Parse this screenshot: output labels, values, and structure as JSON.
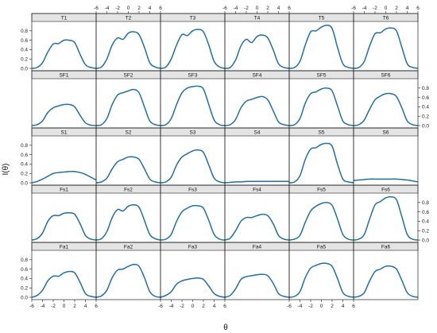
{
  "chart_data": {
    "type": "line",
    "layout": "lattice 6 columns x 5 rows, shared axes",
    "xlabel": "θ",
    "ylabel": "I(θ)",
    "xlim": [
      -6,
      6
    ],
    "ylim": [
      -0.05,
      1.0
    ],
    "x_ticks": [
      -6,
      -4,
      -2,
      0,
      2,
      4,
      6
    ],
    "y_ticks": [
      0.0,
      0.2,
      0.4,
      0.6,
      0.8
    ],
    "y_tick_labels": [
      "0.0",
      "0.2",
      "0.4",
      "0.6",
      "0.8"
    ],
    "grid": false,
    "legend": "none",
    "colors": {
      "line": "#1f6fa8",
      "strip": "#e4e4e4",
      "frame": "#222222",
      "text": "#111111"
    },
    "x": [
      -6,
      -5,
      -4,
      -3,
      -2,
      -1,
      0,
      1,
      2,
      3,
      4,
      5,
      6
    ],
    "panels": [
      {
        "name": "T1",
        "values": [
          0.0,
          0.02,
          0.12,
          0.35,
          0.52,
          0.53,
          0.6,
          0.6,
          0.55,
          0.3,
          0.08,
          0.02,
          0.0
        ]
      },
      {
        "name": "T2",
        "values": [
          0.0,
          0.03,
          0.2,
          0.5,
          0.65,
          0.62,
          0.75,
          0.78,
          0.72,
          0.45,
          0.12,
          0.03,
          0.0
        ]
      },
      {
        "name": "T3",
        "values": [
          0.0,
          0.03,
          0.2,
          0.5,
          0.72,
          0.7,
          0.8,
          0.83,
          0.78,
          0.5,
          0.15,
          0.03,
          0.0
        ]
      },
      {
        "name": "T4",
        "values": [
          0.0,
          0.02,
          0.18,
          0.48,
          0.62,
          0.55,
          0.68,
          0.71,
          0.65,
          0.4,
          0.1,
          0.02,
          0.0
        ]
      },
      {
        "name": "T5",
        "values": [
          0.0,
          0.02,
          0.15,
          0.5,
          0.78,
          0.8,
          0.88,
          0.92,
          0.85,
          0.45,
          0.1,
          0.02,
          0.0
        ]
      },
      {
        "name": "T6",
        "values": [
          0.0,
          0.02,
          0.15,
          0.48,
          0.74,
          0.76,
          0.84,
          0.86,
          0.8,
          0.45,
          0.1,
          0.02,
          0.0
        ]
      },
      {
        "name": "SF1",
        "values": [
          0.0,
          0.02,
          0.1,
          0.28,
          0.38,
          0.42,
          0.45,
          0.45,
          0.4,
          0.22,
          0.06,
          0.01,
          0.0
        ]
      },
      {
        "name": "SF2",
        "values": [
          0.0,
          0.02,
          0.15,
          0.45,
          0.65,
          0.7,
          0.74,
          0.77,
          0.7,
          0.4,
          0.1,
          0.02,
          0.0
        ]
      },
      {
        "name": "SF3",
        "values": [
          0.0,
          0.02,
          0.15,
          0.45,
          0.7,
          0.8,
          0.83,
          0.84,
          0.78,
          0.45,
          0.12,
          0.02,
          0.0
        ]
      },
      {
        "name": "SF4",
        "values": [
          0.0,
          0.02,
          0.13,
          0.38,
          0.52,
          0.56,
          0.6,
          0.62,
          0.55,
          0.32,
          0.08,
          0.02,
          0.0
        ]
      },
      {
        "name": "SF5",
        "values": [
          0.0,
          0.02,
          0.15,
          0.48,
          0.68,
          0.72,
          0.78,
          0.8,
          0.74,
          0.42,
          0.1,
          0.02,
          0.0
        ]
      },
      {
        "name": "SF6",
        "values": [
          0.0,
          0.02,
          0.12,
          0.35,
          0.55,
          0.63,
          0.68,
          0.68,
          0.62,
          0.38,
          0.1,
          0.02,
          0.0
        ]
      },
      {
        "name": "S1",
        "values": [
          0.0,
          0.03,
          0.08,
          0.14,
          0.2,
          0.22,
          0.23,
          0.24,
          0.24,
          0.22,
          0.18,
          0.12,
          0.06
        ]
      },
      {
        "name": "S2",
        "values": [
          0.0,
          0.02,
          0.1,
          0.3,
          0.45,
          0.5,
          0.55,
          0.55,
          0.5,
          0.3,
          0.08,
          0.02,
          0.0
        ]
      },
      {
        "name": "S3",
        "values": [
          0.0,
          0.02,
          0.12,
          0.38,
          0.55,
          0.62,
          0.68,
          0.7,
          0.65,
          0.38,
          0.1,
          0.02,
          0.0
        ]
      },
      {
        "name": "S4",
        "values": [
          0.0,
          0.01,
          0.02,
          0.02,
          0.03,
          0.03,
          0.03,
          0.03,
          0.03,
          0.03,
          0.03,
          0.03,
          0.03
        ]
      },
      {
        "name": "S5",
        "values": [
          0.0,
          0.02,
          0.15,
          0.5,
          0.72,
          0.75,
          0.82,
          0.84,
          0.78,
          0.4,
          0.08,
          0.02,
          0.0
        ]
      },
      {
        "name": "S6",
        "values": [
          0.05,
          0.06,
          0.07,
          0.08,
          0.08,
          0.08,
          0.08,
          0.08,
          0.08,
          0.07,
          0.06,
          0.04,
          0.02
        ]
      },
      {
        "name": "Fs1",
        "values": [
          0.0,
          0.03,
          0.15,
          0.4,
          0.52,
          0.52,
          0.57,
          0.58,
          0.55,
          0.35,
          0.1,
          0.02,
          0.0
        ]
      },
      {
        "name": "Fs2",
        "values": [
          0.0,
          0.03,
          0.18,
          0.48,
          0.65,
          0.62,
          0.72,
          0.75,
          0.7,
          0.42,
          0.12,
          0.03,
          0.0
        ]
      },
      {
        "name": "Fs3",
        "values": [
          0.0,
          0.02,
          0.12,
          0.4,
          0.6,
          0.68,
          0.73,
          0.73,
          0.68,
          0.42,
          0.12,
          0.02,
          0.0
        ]
      },
      {
        "name": "Fs4",
        "values": [
          0.0,
          0.04,
          0.2,
          0.4,
          0.48,
          0.48,
          0.52,
          0.55,
          0.52,
          0.35,
          0.1,
          0.02,
          0.0
        ]
      },
      {
        "name": "Fs5",
        "values": [
          0.0,
          0.02,
          0.1,
          0.38,
          0.62,
          0.72,
          0.78,
          0.8,
          0.74,
          0.45,
          0.12,
          0.02,
          0.0
        ]
      },
      {
        "name": "Fs6",
        "values": [
          0.0,
          0.02,
          0.12,
          0.45,
          0.75,
          0.82,
          0.9,
          0.92,
          0.86,
          0.5,
          0.12,
          0.02,
          0.0
        ]
      },
      {
        "name": "Fa1",
        "values": [
          0.0,
          0.04,
          0.15,
          0.35,
          0.45,
          0.45,
          0.52,
          0.55,
          0.52,
          0.32,
          0.08,
          0.02,
          0.0
        ]
      },
      {
        "name": "Fa2",
        "values": [
          0.0,
          0.03,
          0.15,
          0.42,
          0.58,
          0.6,
          0.66,
          0.7,
          0.66,
          0.42,
          0.12,
          0.02,
          0.0
        ]
      },
      {
        "name": "Fa3",
        "values": [
          0.0,
          0.04,
          0.12,
          0.28,
          0.35,
          0.38,
          0.4,
          0.41,
          0.38,
          0.24,
          0.08,
          0.02,
          0.0
        ]
      },
      {
        "name": "Fa4",
        "values": [
          0.0,
          0.04,
          0.18,
          0.38,
          0.44,
          0.46,
          0.48,
          0.49,
          0.46,
          0.3,
          0.08,
          0.02,
          0.0
        ]
      },
      {
        "name": "Fa5",
        "values": [
          0.0,
          0.02,
          0.12,
          0.42,
          0.62,
          0.68,
          0.72,
          0.72,
          0.66,
          0.4,
          0.1,
          0.02,
          0.0
        ]
      },
      {
        "name": "Fa6",
        "values": [
          0.0,
          0.02,
          0.1,
          0.35,
          0.55,
          0.6,
          0.66,
          0.66,
          0.6,
          0.36,
          0.1,
          0.02,
          0.0
        ]
      }
    ]
  }
}
